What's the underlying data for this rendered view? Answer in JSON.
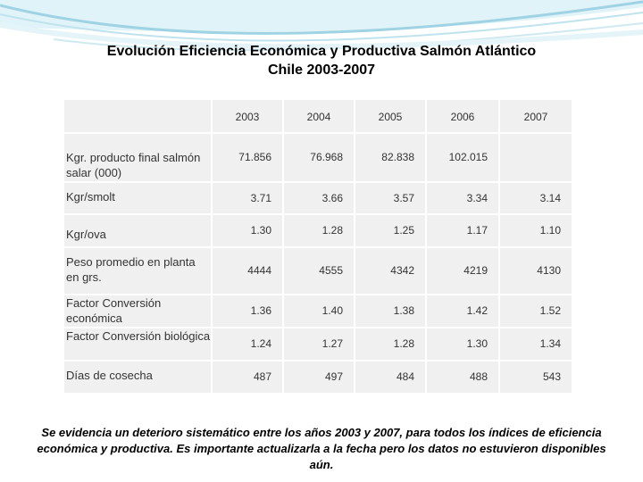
{
  "title": {
    "line1": "Evolución Eficiencia Económica y Productiva Salmón Atlántico",
    "line2": "Chile 2003-2007"
  },
  "table": {
    "years": [
      "2003",
      "2004",
      "2005",
      "2006",
      "2007"
    ],
    "rows": [
      {
        "label": "Kgr.  producto final salmón salar (000)",
        "values": [
          "71.856",
          "76.968",
          "82.838",
          "102.015",
          ""
        ]
      },
      {
        "label": "Kgr/smolt",
        "values": [
          "3.71",
          "3.66",
          "3.57",
          "3.34",
          "3.14"
        ]
      },
      {
        "label": "Kgr/ova",
        "values": [
          "1.30",
          "1.28",
          "1.25",
          "1.17",
          "1.10"
        ]
      },
      {
        "label": "Peso promedio en planta en grs.",
        "values": [
          "4444",
          "4555",
          "4342",
          "4219",
          "4130"
        ]
      },
      {
        "label": "Factor Conversión económica",
        "values": [
          "1.36",
          "1.40",
          "1.38",
          "1.42",
          "1.52"
        ]
      },
      {
        "label": "Factor Conversión biológica",
        "values": [
          "1.24",
          "1.27",
          "1.28",
          "1.30",
          "1.34"
        ]
      },
      {
        "label": "Días de cosecha",
        "values": [
          "487",
          "497",
          "484",
          "488",
          "543"
        ]
      }
    ]
  },
  "footnote": "Se evidencia un deterioro sistemático entre los años 2003 y 2007, para todos los índices de eficiencia económica y productiva. Es importante actualizarla a la fecha pero los datos no estuvieron disponibles aún."
}
